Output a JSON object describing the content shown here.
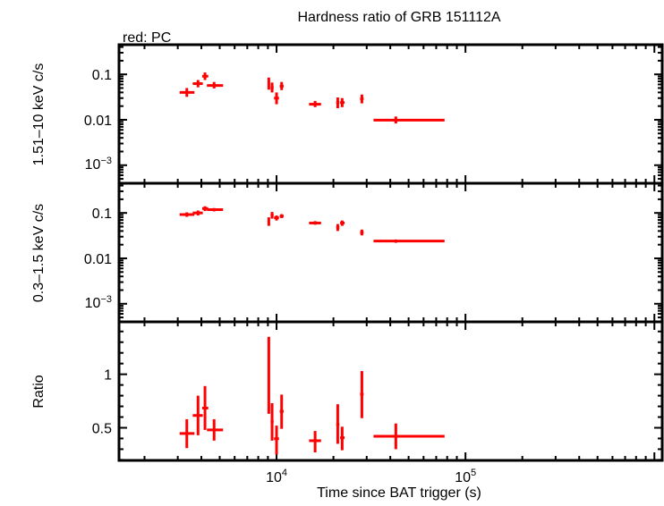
{
  "chart_data": [
    {
      "type": "scatter",
      "title": "Hardness ratio of GRB 151112A",
      "subtitle": "red: PC",
      "ylabel": "1.51–10 keV c/s",
      "yscale": "log",
      "xscale": "log",
      "xlim": [
        1466,
        1100000
      ],
      "ylim": [
        0.0004,
        0.45
      ],
      "yticks": [
        {
          "v": 0.1,
          "label": "0.1"
        },
        {
          "v": 0.01,
          "label": "0.01"
        },
        {
          "v": 0.001,
          "label": "10",
          "sup": "−3"
        }
      ],
      "color": "#ff0000",
      "x": [
        3350,
        3840,
        4180,
        4670,
        9100,
        9470,
        10000,
        10640,
        16000,
        21080,
        22250,
        28300,
        42800
      ],
      "xerr": [
        [
          3070,
          3675
        ],
        [
          3600,
          4070
        ],
        [
          4040,
          4350
        ],
        [
          4280,
          5210
        ],
        [
          9000,
          9200
        ],
        [
          9300,
          9650
        ],
        [
          9700,
          10300
        ],
        [
          10400,
          10900
        ],
        [
          14860,
          17200
        ],
        [
          20700,
          21500
        ],
        [
          21700,
          22900
        ],
        [
          27700,
          28900
        ],
        [
          32600,
          77500
        ]
      ],
      "y": [
        0.04,
        0.0625,
        0.091,
        0.057,
        0.0625,
        0.051,
        0.03,
        0.055,
        0.022,
        0.024,
        0.024,
        0.029,
        0.0098
      ],
      "yerr": [
        [
          0.032,
          0.05
        ],
        [
          0.052,
          0.075
        ],
        [
          0.075,
          0.11
        ],
        [
          0.049,
          0.068
        ],
        [
          0.046,
          0.085
        ],
        [
          0.04,
          0.066
        ],
        [
          0.022,
          0.04
        ],
        [
          0.045,
          0.068
        ],
        [
          0.019,
          0.026
        ],
        [
          0.018,
          0.031
        ],
        [
          0.019,
          0.03
        ],
        [
          0.023,
          0.036
        ],
        [
          0.0083,
          0.0118
        ]
      ]
    },
    {
      "type": "scatter",
      "ylabel": "0.3–1.5 keV c/s",
      "yscale": "log",
      "xscale": "log",
      "xlim": [
        1466,
        1100000
      ],
      "ylim": [
        0.0004,
        0.45
      ],
      "yticks": [
        {
          "v": 0.1,
          "label": "0.1"
        },
        {
          "v": 0.01,
          "label": "0.01"
        },
        {
          "v": 0.001,
          "label": "10",
          "sup": "−3"
        }
      ],
      "color": "#ff0000",
      "x": [
        3350,
        3840,
        4180,
        4670,
        9100,
        9470,
        10000,
        10640,
        16000,
        21080,
        22250,
        28300,
        42800
      ],
      "xerr": [
        [
          3070,
          3675
        ],
        [
          3600,
          4070
        ],
        [
          4040,
          4350
        ],
        [
          4280,
          5210
        ],
        [
          9000,
          9200
        ],
        [
          9300,
          9650
        ],
        [
          9700,
          10300
        ],
        [
          10400,
          10900
        ],
        [
          14860,
          17200
        ],
        [
          20700,
          21500
        ],
        [
          21700,
          22900
        ],
        [
          27700,
          28900
        ],
        [
          32600,
          77500
        ]
      ],
      "y": [
        0.092,
        0.1,
        0.125,
        0.118,
        0.065,
        0.09,
        0.078,
        0.085,
        0.06,
        0.048,
        0.06,
        0.037,
        0.024
      ],
      "yerr": [
        [
          0.082,
          0.103
        ],
        [
          0.088,
          0.113
        ],
        [
          0.11,
          0.14
        ],
        [
          0.108,
          0.128
        ],
        [
          0.052,
          0.08
        ],
        [
          0.075,
          0.105
        ],
        [
          0.068,
          0.088
        ],
        [
          0.077,
          0.094
        ],
        [
          0.055,
          0.066
        ],
        [
          0.04,
          0.057
        ],
        [
          0.052,
          0.068
        ],
        [
          0.032,
          0.043
        ],
        [
          0.022,
          0.026
        ]
      ]
    },
    {
      "type": "scatter",
      "ylabel": "Ratio",
      "xlabel": "Time since BAT trigger (s)",
      "yscale": "linear",
      "xscale": "log",
      "xlim": [
        1466,
        1100000
      ],
      "ylim": [
        0.195,
        1.49
      ],
      "yticks": [
        {
          "v": 0.5,
          "label": "0.5"
        },
        {
          "v": 1,
          "label": "1"
        }
      ],
      "xticks": [
        {
          "v": 10000,
          "label": "10",
          "sup": "4"
        },
        {
          "v": 100000,
          "label": "10",
          "sup": "5"
        }
      ],
      "color": "#ff0000",
      "x": [
        3350,
        3840,
        4180,
        4670,
        9100,
        9470,
        10000,
        10640,
        16000,
        21080,
        22250,
        28300,
        42800
      ],
      "xerr": [
        [
          3070,
          3675
        ],
        [
          3600,
          4070
        ],
        [
          4040,
          4350
        ],
        [
          4280,
          5210
        ],
        [
          9000,
          9200
        ],
        [
          9300,
          9650
        ],
        [
          9700,
          10300
        ],
        [
          10400,
          10900
        ],
        [
          14860,
          17200
        ],
        [
          20700,
          21500
        ],
        [
          21700,
          22900
        ],
        [
          27700,
          28900
        ],
        [
          32600,
          77500
        ]
      ],
      "y": [
        0.447,
        0.615,
        0.684,
        0.48,
        0.99,
        0.557,
        0.398,
        0.653,
        0.379,
        0.531,
        0.407,
        0.814,
        0.421
      ],
      "yerr": [
        [
          0.31,
          0.58
        ],
        [
          0.43,
          0.8
        ],
        [
          0.48,
          0.89
        ],
        [
          0.38,
          0.58
        ],
        [
          0.63,
          1.35
        ],
        [
          0.38,
          0.73
        ],
        [
          0.25,
          0.52
        ],
        [
          0.49,
          0.81
        ],
        [
          0.27,
          0.47
        ],
        [
          0.35,
          0.72
        ],
        [
          0.29,
          0.51
        ],
        [
          0.59,
          1.03
        ],
        [
          0.3,
          0.54
        ]
      ]
    }
  ]
}
